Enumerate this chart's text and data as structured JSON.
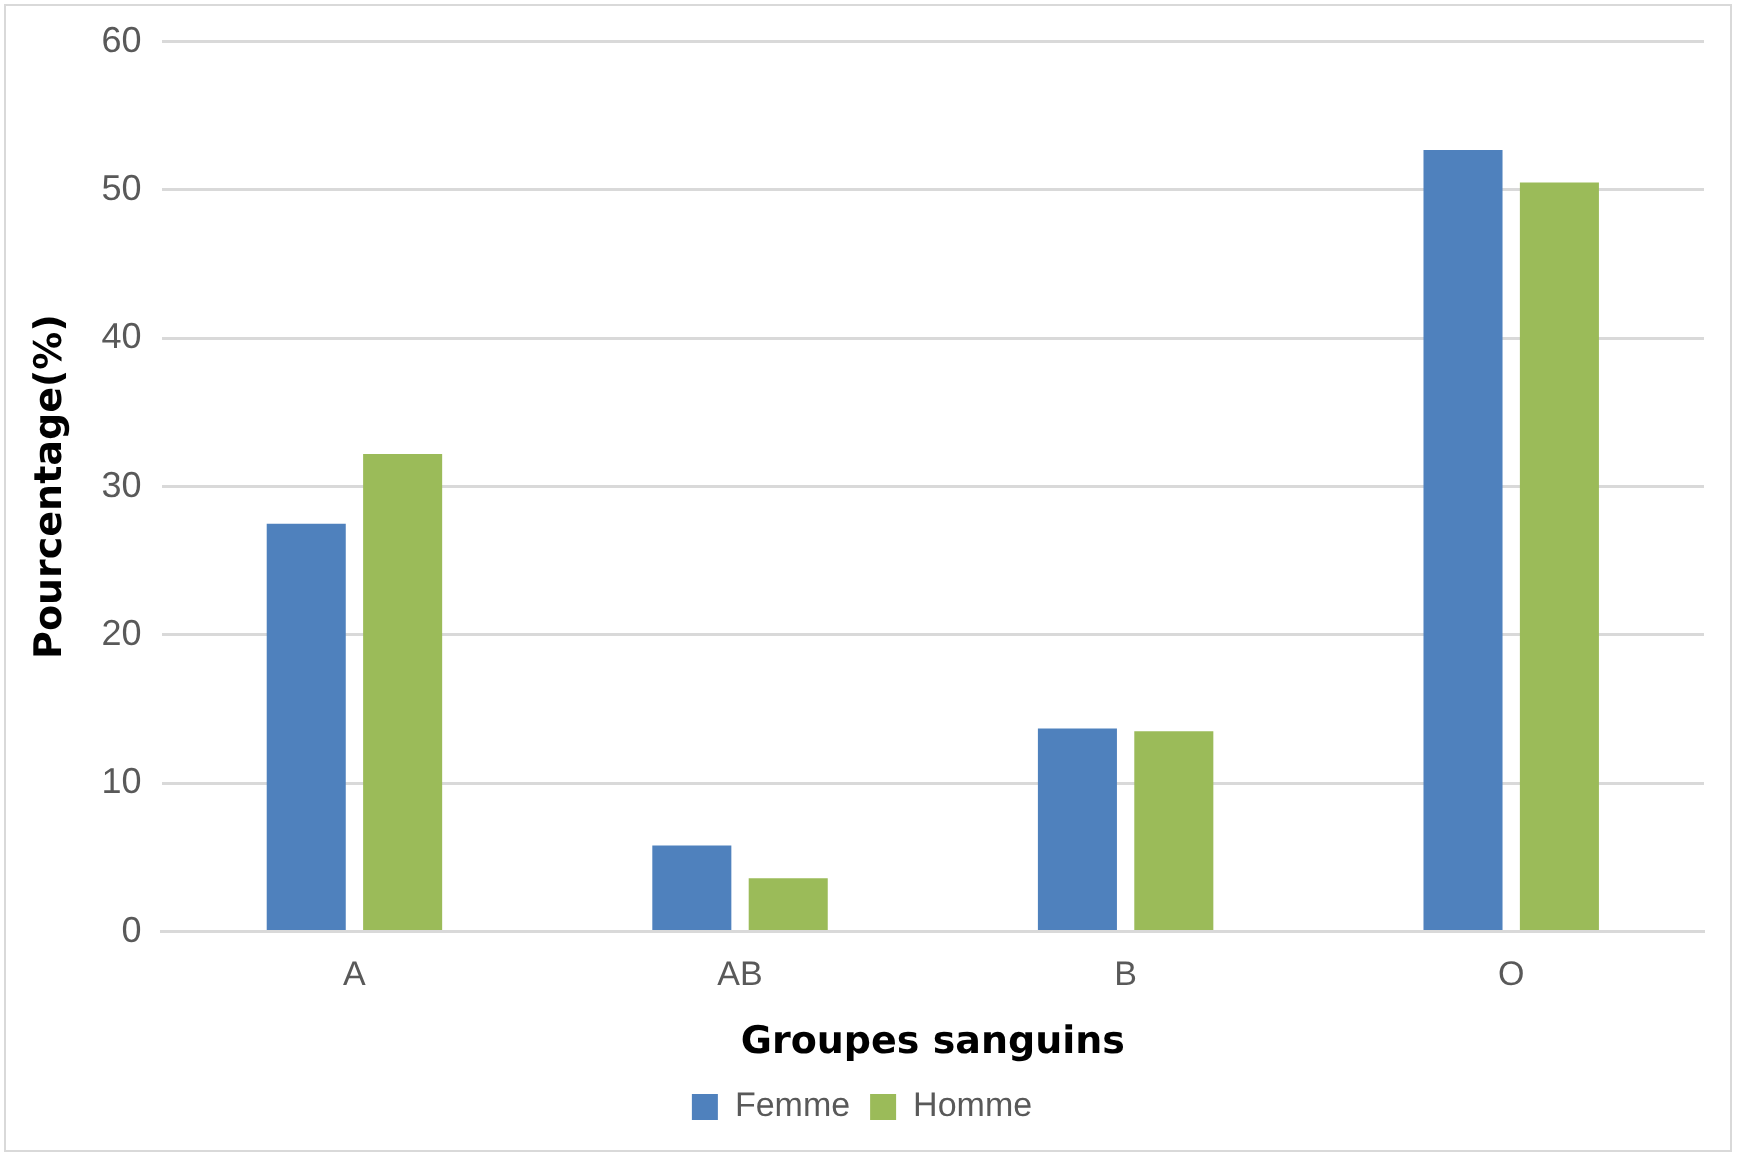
{
  "chart_data": {
    "type": "bar",
    "xlabel": "Groupes sanguins",
    "ylabel": "Pourcentage(%)",
    "categories": [
      "A",
      "AB",
      "B",
      "O"
    ],
    "series": [
      {
        "name": "Femme",
        "color": "#4f81bd",
        "values": [
          27.5,
          5.8,
          13.7,
          52.7
        ]
      },
      {
        "name": "Homme",
        "color": "#9bbb59",
        "values": [
          32.2,
          3.6,
          13.5,
          50.5
        ]
      }
    ],
    "ylim": [
      0,
      60
    ],
    "yticks": [
      0,
      10,
      20,
      30,
      40,
      50,
      60
    ],
    "grid": "y",
    "legend": "bottom"
  }
}
